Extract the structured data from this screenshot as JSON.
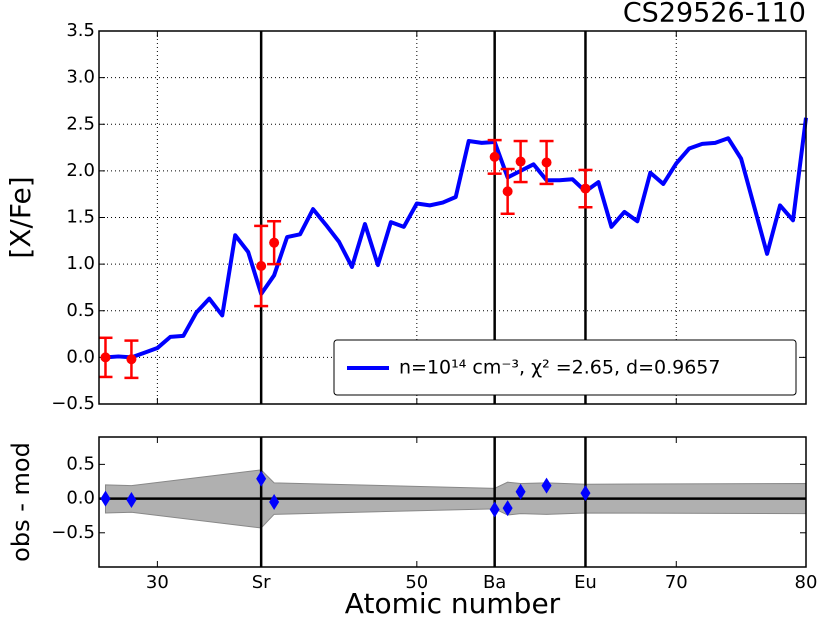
{
  "chart_data": [
    {
      "type": "line",
      "title": "CS29526-110",
      "ylabel": "[X/Fe]",
      "xlim": [
        25.5,
        80
      ],
      "ylim": [
        -0.5,
        3.5
      ],
      "xticks": [
        30,
        38,
        50,
        56,
        63,
        70,
        80
      ],
      "yticks": [
        {
          "value": -0.5,
          "label": "−0.5"
        },
        {
          "value": 0,
          "label": "0.0"
        },
        {
          "value": 0.5,
          "label": "0.5"
        },
        {
          "value": 1,
          "label": "1.0"
        },
        {
          "value": 1.5,
          "label": "1.5"
        },
        {
          "value": 2,
          "label": "2.0"
        },
        {
          "value": 2.5,
          "label": "2.5"
        },
        {
          "value": 3,
          "label": "3.0"
        },
        {
          "value": 3.5,
          "label": "3.5"
        }
      ],
      "grid": true,
      "vlines": [
        38,
        56,
        63
      ],
      "legend": "lower right",
      "series": [
        {
          "name": "n=10¹⁴ cm⁻³, χ² =2.65, d=0.9657",
          "color": "#0000ff",
          "x": [
            26,
            27,
            28,
            29,
            30,
            31,
            32,
            33,
            34,
            35,
            36,
            37,
            38,
            39,
            40,
            41,
            42,
            43,
            44,
            45,
            46,
            47,
            48,
            49,
            50,
            51,
            52,
            53,
            54,
            55,
            56,
            57,
            58,
            59,
            60,
            61,
            62,
            63,
            64,
            65,
            66,
            67,
            68,
            69,
            70,
            71,
            72,
            73,
            74,
            75,
            76,
            77,
            78,
            79,
            80
          ],
          "values": [
            0.0,
            0.01,
            0.0,
            0.05,
            0.1,
            0.22,
            0.23,
            0.48,
            0.63,
            0.45,
            1.31,
            1.13,
            0.68,
            0.88,
            1.29,
            1.32,
            1.59,
            1.42,
            1.24,
            0.97,
            1.43,
            0.99,
            1.45,
            1.4,
            1.65,
            1.63,
            1.66,
            1.72,
            2.32,
            2.3,
            2.31,
            1.93,
            2.0,
            2.07,
            1.9,
            1.9,
            1.91,
            1.78,
            1.88,
            1.4,
            1.56,
            1.46,
            1.98,
            1.86,
            2.08,
            2.24,
            2.29,
            2.3,
            2.35,
            2.13,
            1.62,
            1.11,
            1.63,
            1.47,
            2.57
          ]
        },
        {
          "color": "#ff0000",
          "x": [
            26,
            28,
            38,
            39,
            56,
            57,
            58,
            60,
            63
          ],
          "values": [
            0.0,
            -0.02,
            0.98,
            1.23,
            2.15,
            1.78,
            2.1,
            2.09,
            1.81
          ],
          "errors": [
            0.21,
            0.2,
            0.43,
            0.23,
            0.18,
            0.24,
            0.22,
            0.23,
            0.2
          ]
        }
      ]
    },
    {
      "type": "scatter",
      "ylabel": "obs - mod",
      "xlabel": "Atomic number",
      "xlim": [
        25.5,
        80
      ],
      "ylim": [
        -1.0,
        0.9
      ],
      "xticks": [
        30,
        {
          "value": 38,
          "label": "Sr"
        },
        50,
        {
          "value": 56,
          "label": "Ba"
        },
        {
          "value": 63,
          "label": "Eu"
        },
        70,
        80
      ],
      "yticks": [
        {
          "value": -0.5,
          "label": "−0.5"
        },
        {
          "value": 0,
          "label": "0.0"
        },
        {
          "value": 0.5,
          "label": "0.5"
        }
      ],
      "vlines": [
        38,
        56,
        63
      ],
      "hline": 0,
      "band": {
        "color": "#b0b0b0",
        "x": [
          26,
          28,
          38,
          39,
          56,
          57,
          58,
          60,
          63,
          80
        ],
        "upper": [
          0.2,
          0.19,
          0.42,
          0.23,
          0.15,
          0.24,
          0.22,
          0.23,
          0.21,
          0.22
        ],
        "lower": [
          -0.21,
          -0.2,
          -0.43,
          -0.23,
          -0.15,
          -0.24,
          -0.22,
          -0.23,
          -0.21,
          -0.22
        ]
      },
      "series": [
        {
          "color": "#0000ff",
          "x": [
            26,
            28,
            38,
            39,
            56,
            57,
            58,
            60,
            63
          ],
          "values": [
            0.0,
            -0.02,
            0.29,
            -0.05,
            -0.16,
            -0.14,
            0.1,
            0.19,
            0.08
          ]
        }
      ]
    }
  ]
}
